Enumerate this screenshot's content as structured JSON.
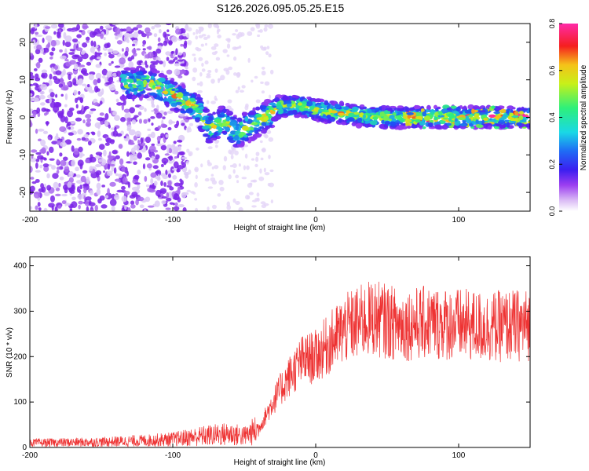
{
  "title": "S126.2026.095.05.25.E15",
  "colors": {
    "spectrogram_base": "#7a1fe0",
    "spectrogram_light": "#d8c4f6",
    "snr_line": "#ee3333",
    "axis": "#000000"
  },
  "chart_data": [
    {
      "type": "heatmap",
      "name": "spectrogram",
      "xlabel": "Height of straight line (km)",
      "ylabel": "Frequency (Hz)",
      "xlim": [
        -200,
        150
      ],
      "ylim": [
        -25,
        25
      ],
      "xticks": [
        -200,
        -100,
        0,
        100
      ],
      "yticks": [
        -20,
        -10,
        0,
        10,
        20
      ],
      "description_trace": {
        "x": [
          -135,
          -115,
          -100,
          -90,
          -82,
          -75,
          -65,
          -55,
          -45,
          -35,
          -25,
          -10,
          0,
          20,
          40,
          60,
          80,
          100,
          120,
          150
        ],
        "y": [
          9,
          9,
          6,
          4,
          2,
          -3,
          -1,
          -4,
          -2,
          0,
          3,
          3,
          2,
          1,
          0,
          0,
          0,
          0,
          0,
          0
        ]
      },
      "colorbar": {
        "label": "Normalized spectral amplitude",
        "range": [
          0.0,
          0.8
        ],
        "ticks": [
          "0.0",
          "0.2",
          "0.4",
          "0.6",
          "0.8"
        ]
      }
    },
    {
      "type": "line",
      "name": "snr",
      "xlabel": "Height of straight line (km)",
      "ylabel": "SNR (10 * v/v)",
      "xlim": [
        -200,
        150
      ],
      "ylim": [
        0,
        420
      ],
      "xticks": [
        -200,
        -100,
        0,
        100
      ],
      "yticks": [
        0,
        100,
        200,
        300,
        400
      ],
      "series": [
        {
          "name": "SNR",
          "trend": {
            "x": [
              -200,
              -150,
              -120,
              -100,
              -80,
              -60,
              -50,
              -40,
              -30,
              -20,
              -10,
              0,
              10,
              20,
              30,
              40,
              60,
              80,
              100,
              120,
              150
            ],
            "y": [
              10,
              12,
              15,
              18,
              25,
              30,
              25,
              40,
              100,
              150,
              190,
              200,
              230,
              260,
              275,
              285,
              270,
              275,
              270,
              265,
              270
            ]
          }
        }
      ]
    }
  ]
}
